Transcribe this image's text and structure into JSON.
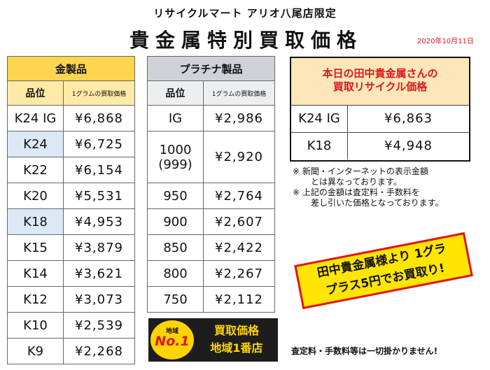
{
  "header": {
    "store_name": "リサイクルマート アリオ八尾店限定",
    "title": "貴金属特別買取価格",
    "date": "2020年10月11日"
  },
  "gold": {
    "title": "金製品",
    "col1": "品位",
    "col2": "1グラムの買取価格",
    "rows": [
      {
        "grade": "K24 IG",
        "price": "¥6,868"
      },
      {
        "grade": "K24",
        "price": "¥6,725"
      },
      {
        "grade": "K22",
        "price": "¥6,154"
      },
      {
        "grade": "K20",
        "price": "¥5,531"
      },
      {
        "grade": "K18",
        "price": "¥4,953"
      },
      {
        "grade": "K15",
        "price": "¥3,879"
      },
      {
        "grade": "K14",
        "price": "¥3,621"
      },
      {
        "grade": "K12",
        "price": "¥3,073"
      },
      {
        "grade": "K10",
        "price": "¥2,539"
      },
      {
        "grade": "K9",
        "price": "¥2,268"
      }
    ]
  },
  "platinum": {
    "title": "プラチナ製品",
    "col1": "品位",
    "col2": "1グラムの買取価格",
    "rows": [
      {
        "grade": "IG",
        "price": "¥2,986"
      },
      {
        "grade": "1000",
        "grade_sub": "(999)",
        "price": "¥2,920"
      },
      {
        "grade": "950",
        "price": "¥2,764"
      },
      {
        "grade": "900",
        "price": "¥2,607"
      },
      {
        "grade": "850",
        "price": "¥2,422"
      },
      {
        "grade": "800",
        "price": "¥2,267"
      },
      {
        "grade": "750",
        "price": "¥2,112"
      }
    ]
  },
  "today": {
    "line1": "本日の田中貴金属さんの",
    "line2": "買取リサイクル価格",
    "rows": [
      {
        "grade": "K24 IG",
        "price": "¥6,863"
      },
      {
        "grade": "K18",
        "price": "¥4,948"
      }
    ]
  },
  "notes": {
    "n1_a": "※ 新聞・インターネットの表示金額",
    "n1_b": "とは異なっております。",
    "n2_a": "※ 上記の金額は査定料・手数料を",
    "n2_b": "差し引いた価格となっております。"
  },
  "promo": {
    "line1": "田中貴金属様より 1グラ",
    "line2": "プラス5円でお買取り!"
  },
  "banner": {
    "badge_top": "地域",
    "badge_main": "No.1",
    "line1": "買取価格",
    "line2": "地域1番店"
  },
  "footer": "査定料・手数料等は一切掛かりません!",
  "colors": {
    "accent_red": "#e0151b",
    "gold_header": "#ffd450",
    "platinum_header": "#cfd3d8",
    "highlight_blue": "#dce9f5"
  }
}
